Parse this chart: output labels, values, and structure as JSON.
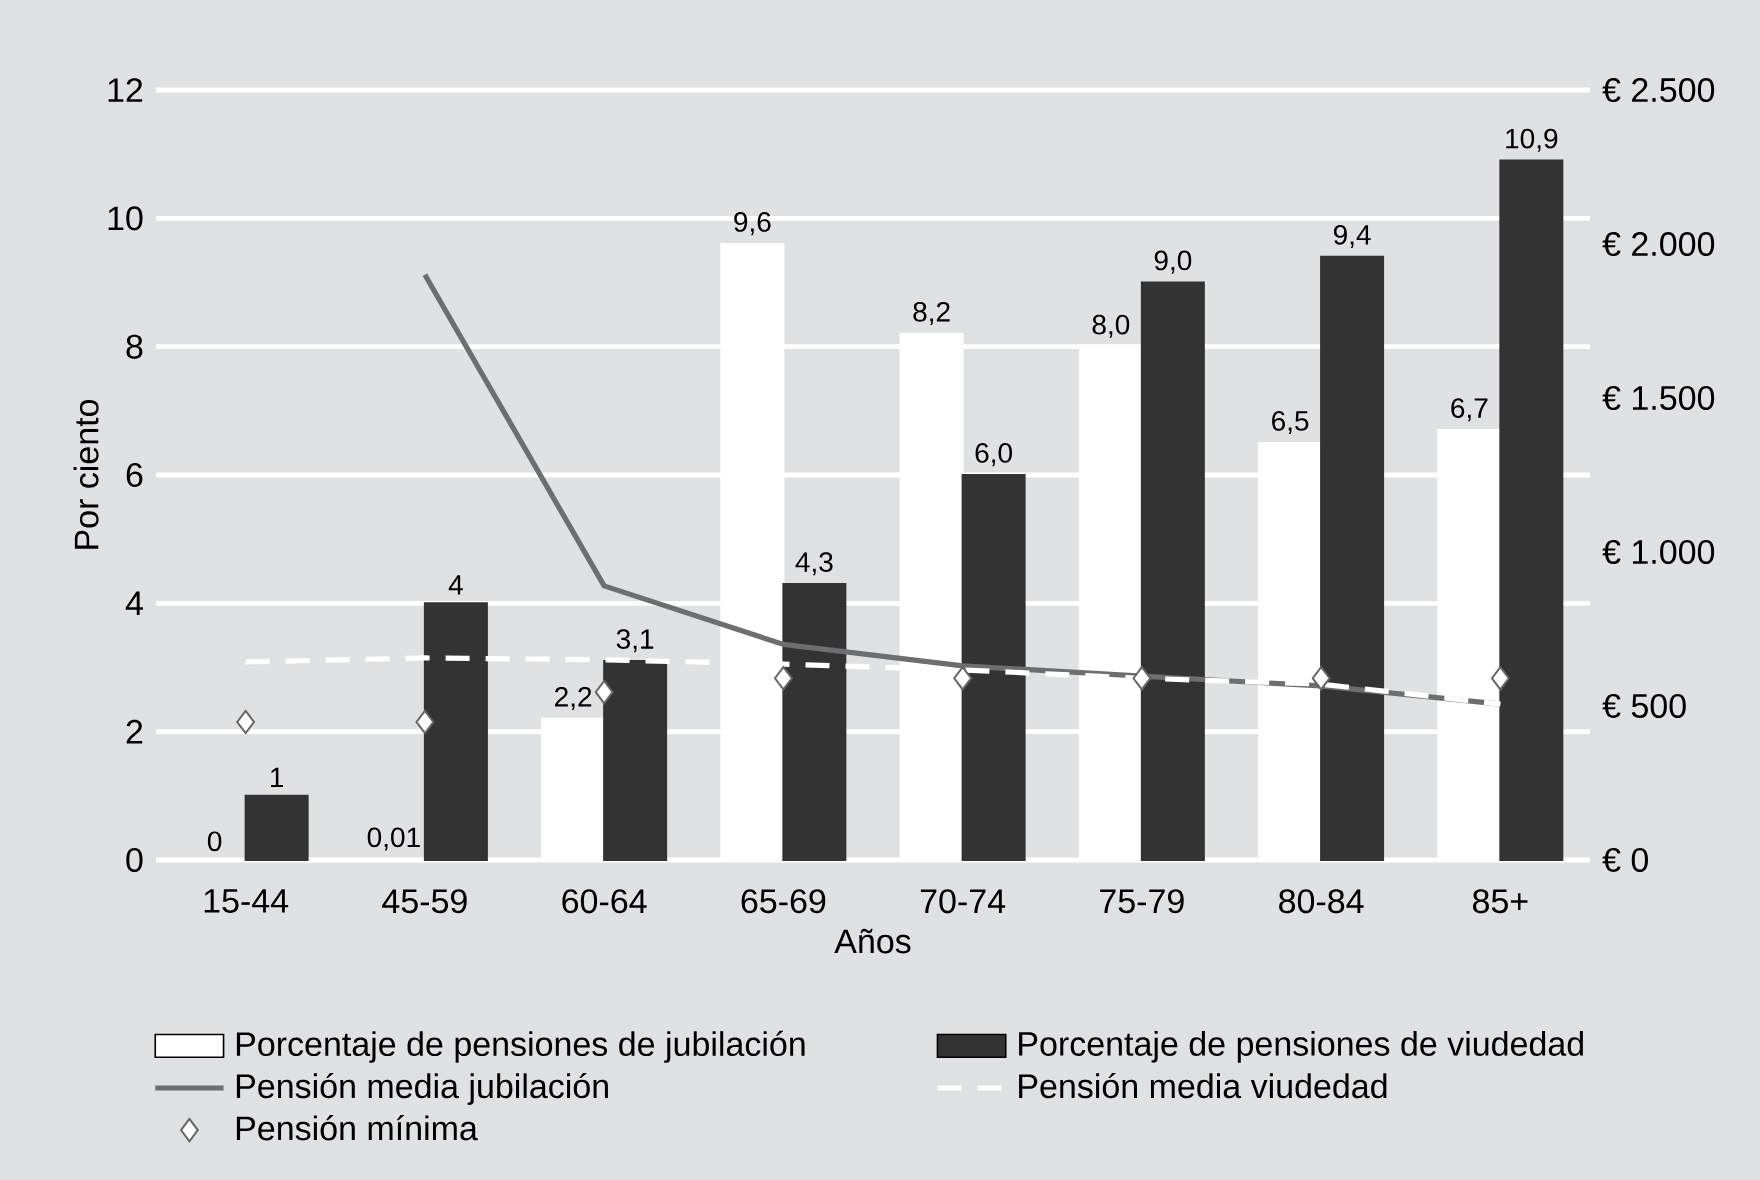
{
  "chart_data": {
    "type": "bar",
    "xlabel": "Años",
    "ylabel": "Por ciento",
    "categories": [
      "15-44",
      "45-59",
      "60-64",
      "65-69",
      "70-74",
      "75-79",
      "80-84",
      "85+"
    ],
    "ylim": [
      0,
      12
    ],
    "yticks": [
      0,
      2,
      4,
      6,
      8,
      10,
      12
    ],
    "y2lim": [
      0,
      2500
    ],
    "y2ticks": [
      {
        "value": 0,
        "label": "€ 0"
      },
      {
        "value": 500,
        "label": "€ 500"
      },
      {
        "value": 1000,
        "label": "€ 1.000"
      },
      {
        "value": 1500,
        "label": "€ 1.500"
      },
      {
        "value": 2000,
        "label": "€ 2.000"
      },
      {
        "value": 2500,
        "label": "€ 2.500"
      }
    ],
    "grid": "y",
    "legend": "bottom",
    "series": [
      {
        "name": "Porcentaje de pensiones de jubilación",
        "color": "#ffffff",
        "values": [
          0,
          0.01,
          2.2,
          9.6,
          8.2,
          8.0,
          6.5,
          6.7
        ],
        "value_labels": [
          "0",
          "0,01",
          "2,2",
          "9,6",
          "8,2",
          "8,0",
          "6,5",
          "6,7"
        ]
      },
      {
        "name": "Porcentaje de pensiones de viudedad",
        "color": "#333333",
        "values": [
          1,
          4,
          3.1,
          4.3,
          6.0,
          9.0,
          9.4,
          10.9
        ],
        "value_labels": [
          "1",
          "4",
          "3,1",
          "4,3",
          "6,0",
          "9,0",
          "9,4",
          "10,9"
        ]
      },
      {
        "name": "Pensión media jubilación",
        "type": "line",
        "axis": "y2",
        "color": "#6d6e71",
        "line_style": "solid",
        "marker": "none",
        "values": [
          null,
          1900,
          890,
          700,
          630,
          597,
          565,
          506
        ]
      },
      {
        "name": "Pensión media viudedad",
        "type": "line",
        "axis": "y2",
        "color": "#ffffff",
        "line_style": "dashed",
        "marker": "none",
        "values": [
          643,
          656,
          650,
          636,
          617,
          590,
          571,
          506
        ]
      },
      {
        "name": "Pensión mínima",
        "type": "scatter",
        "axis": "y2",
        "color": "#ffffff",
        "marker": "diamond",
        "values": [
          448,
          448,
          545,
          590,
          590,
          590,
          590,
          590
        ]
      }
    ]
  }
}
